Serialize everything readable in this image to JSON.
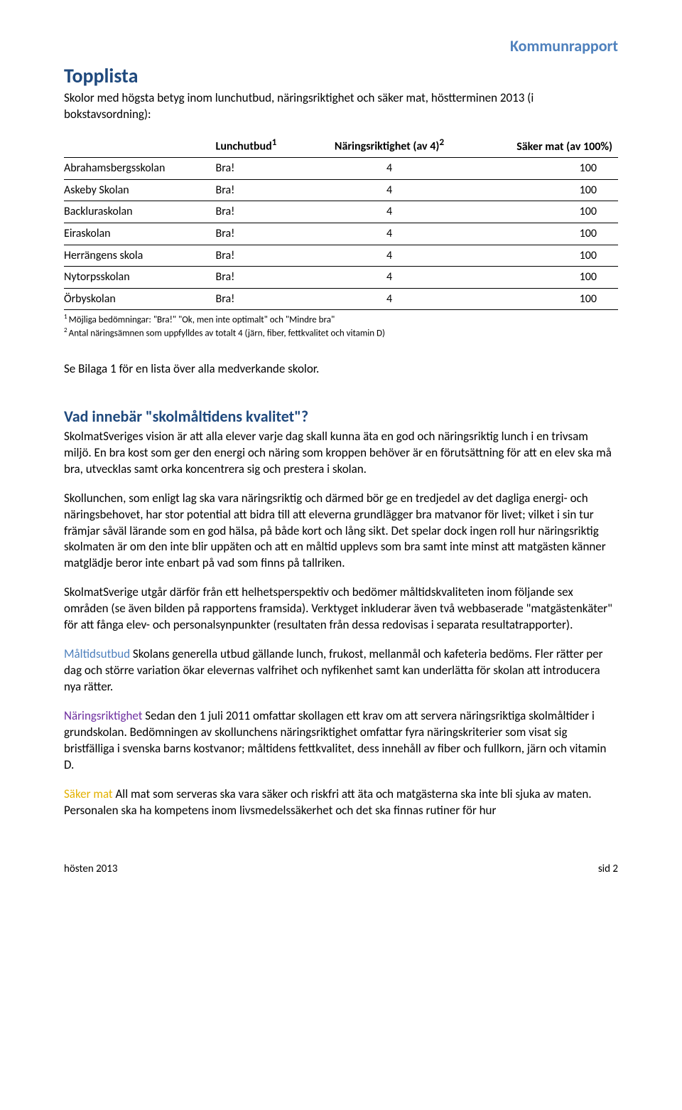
{
  "header": {
    "right_title": "Kommunrapport",
    "right_color": "#4f81bd"
  },
  "topplista": {
    "title": "Topplista",
    "title_color": "#1f497d",
    "intro": "Skolor med högsta betyg inom lunchutbud, näringsriktighet och säker mat, höstterminen 2013 (i bokstavsordning):"
  },
  "table": {
    "columns": {
      "c1": "",
      "c2_html": "Lunchutbud<sup>1</sup>",
      "c3_html": "Näringsriktighet (av 4)<sup>2</sup>",
      "c4": "Säker mat (av 100%)"
    },
    "rows": [
      {
        "school": "Abrahamsbergsskolan",
        "lunch": "Bra!",
        "nutrition": "4",
        "safe": "100"
      },
      {
        "school": "Askeby Skolan",
        "lunch": "Bra!",
        "nutrition": "4",
        "safe": "100"
      },
      {
        "school": "Backluraskolan",
        "lunch": "Bra!",
        "nutrition": "4",
        "safe": "100"
      },
      {
        "school": "Eiraskolan",
        "lunch": "Bra!",
        "nutrition": "4",
        "safe": "100"
      },
      {
        "school": "Herrängens skola",
        "lunch": "Bra!",
        "nutrition": "4",
        "safe": "100"
      },
      {
        "school": "Nytorpsskolan",
        "lunch": "Bra!",
        "nutrition": "4",
        "safe": "100"
      },
      {
        "school": "Örbyskolan",
        "lunch": "Bra!",
        "nutrition": "4",
        "safe": "100"
      }
    ]
  },
  "footnotes": {
    "f1": "Möjliga bedömningar: \"Bra!\" \"Ok, men inte optimalt\" och \"Mindre bra\"",
    "f2": "Antal näringsämnen som uppfylldes av totalt 4 (järn, fiber, fettkvalitet och vitamin D)"
  },
  "see_bilaga": "Se Bilaga 1 för en lista över alla medverkande skolor.",
  "section2": {
    "title": "Vad innebär \"skolmåltidens kvalitet\"?",
    "title_color": "#1f497d",
    "p1": "SkolmatSveriges vision är att alla elever varje dag skall kunna äta en god och näringsriktig lunch i en trivsam miljö. En bra kost som ger den energi och näring som kroppen behöver är en förutsättning för att en elev ska må bra, utvecklas samt orka koncentrera sig och prestera i skolan.",
    "p2": "Skollunchen, som enligt lag ska vara näringsriktig och därmed bör ge en tredjedel av det dagliga energi- och näringsbehovet, har stor potential att bidra till att eleverna grundlägger bra matvanor för livet; vilket i sin tur främjar såväl lärande som en god hälsa, på både kort och lång sikt. Det spelar dock ingen roll hur näringsriktig skolmaten är om den inte blir uppäten och att en måltid upplevs som bra samt inte minst att matgästen känner matglädje beror inte enbart på vad som finns på tallriken.",
    "p3": "SkolmatSverige utgår därför från ett helhetsperspektiv och bedömer måltidskvaliteten inom följande sex områden (se även bilden på rapportens framsida). Verktyget inkluderar även två webbaserade \"matgästenkäter\" för att fånga elev- och personalsynpunkter (resultaten från dessa redovisas i separata resultatrapporter).",
    "p4_term": "Måltidsutbud",
    "p4_term_color": "#4f81bd",
    "p4_rest": " Skolans generella utbud gällande lunch, frukost, mellanmål och kafeteria bedöms. Fler rätter per dag och större variation ökar elevernas valfrihet och nyfikenhet samt kan underlätta för skolan att introducera nya rätter.",
    "p5_term": "Näringsriktighet",
    "p5_term_color": "#7030a0",
    "p5_rest": " Sedan den 1 juli 2011 omfattar skollagen ett krav om att servera näringsriktiga skolmåltider i grundskolan. Bedömningen av skollunchens näringsriktighet omfattar fyra näringskriterier som visat sig bristfälliga i svenska barns kostvanor; måltidens fettkvalitet, dess innehåll av fiber och fullkorn, järn och vitamin D.",
    "p6_term": "Säker mat",
    "p6_term_color": "#e3b100",
    "p6_rest": " All mat som serveras ska vara säker och riskfri att äta och matgästerna ska inte bli sjuka av maten. Personalen ska ha kompetens inom livsmedelssäkerhet och det ska finnas rutiner för hur"
  },
  "footer": {
    "left": "hösten 2013",
    "right": "sid 2"
  }
}
